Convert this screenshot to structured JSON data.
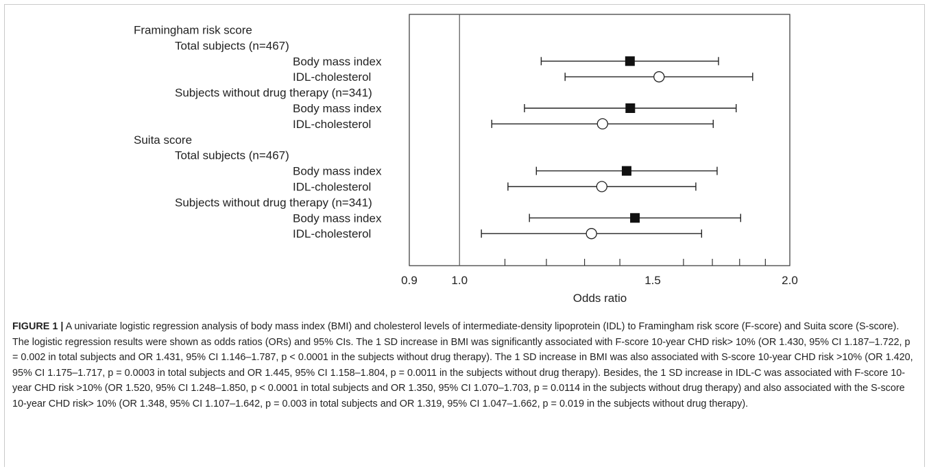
{
  "chart_data": {
    "type": "forest",
    "xlabel": "Odds ratio",
    "xlim": [
      0.9,
      2.0
    ],
    "x_scale": "log",
    "ticks_major": [
      {
        "value": 0.9,
        "label": "0.9"
      },
      {
        "value": 1.0,
        "label": "1.0"
      },
      {
        "value": 1.5,
        "label": "1.5"
      },
      {
        "value": 2.0,
        "label": "2.0"
      }
    ],
    "ticks_minor": [
      1.1,
      1.2,
      1.3,
      1.4,
      1.6,
      1.7,
      1.8,
      1.9
    ],
    "reference_line": 1.0,
    "rows": [
      {
        "label": "Framingham risk score",
        "level": 0
      },
      {
        "label": "Total subjects (n=467)",
        "level": 1
      },
      {
        "label": "Body mass index",
        "level": 2,
        "or": 1.43,
        "lo": 1.187,
        "hi": 1.722,
        "marker": "filled-square"
      },
      {
        "label": "IDL-cholesterol",
        "level": 2,
        "or": 1.52,
        "lo": 1.248,
        "hi": 1.85,
        "marker": "open-circle"
      },
      {
        "label": "Subjects without drug therapy (n=341)",
        "level": 1
      },
      {
        "label": "Body mass index",
        "level": 2,
        "or": 1.431,
        "lo": 1.146,
        "hi": 1.787,
        "marker": "filled-square"
      },
      {
        "label": "IDL-cholesterol",
        "level": 2,
        "or": 1.35,
        "lo": 1.07,
        "hi": 1.703,
        "marker": "open-circle"
      },
      {
        "label": "Suita score",
        "level": 0
      },
      {
        "label": "Total subjects (n=467)",
        "level": 1
      },
      {
        "label": "Body mass index",
        "level": 2,
        "or": 1.42,
        "lo": 1.175,
        "hi": 1.717,
        "marker": "filled-square"
      },
      {
        "label": "IDL-cholesterol",
        "level": 2,
        "or": 1.348,
        "lo": 1.107,
        "hi": 1.642,
        "marker": "open-circle"
      },
      {
        "label": "Subjects without drug therapy (n=341)",
        "level": 1
      },
      {
        "label": "Body mass index",
        "level": 2,
        "or": 1.445,
        "lo": 1.158,
        "hi": 1.804,
        "marker": "filled-square"
      },
      {
        "label": "IDL-cholesterol",
        "level": 2,
        "or": 1.319,
        "lo": 1.047,
        "hi": 1.662,
        "marker": "open-circle"
      }
    ]
  },
  "caption": {
    "figure_label": "FIGURE 1 |",
    "text": "A univariate logistic regression analysis of body mass index (BMI) and cholesterol levels of intermediate-density lipoprotein (IDL) to Framingham risk score (F-score) and Suita score (S-score). The logistic regression results were shown as odds ratios (ORs) and 95% CIs. The 1 SD increase in BMI was significantly associated with F-score 10-year CHD risk> 10% (OR 1.430, 95% CI 1.187–1.722, p = 0.002 in total subjects and OR 1.431, 95% CI 1.146–1.787, p < 0.0001 in the subjects without drug therapy). The 1 SD increase in BMI was also associated with S-score 10-year CHD risk >10% (OR 1.420, 95% CI 1.175–1.717, p = 0.0003 in total subjects and OR 1.445, 95% CI 1.158–1.804, p = 0.0011 in the subjects without drug therapy). Besides, the 1 SD increase in IDL-C was associated with F-score 10-year CHD risk >10% (OR 1.520, 95% CI 1.248–1.850, p < 0.0001 in total subjects and OR 1.350, 95% CI 1.070–1.703, p = 0.0114 in the subjects without drug therapy) and also associated with the S-score 10-year CHD risk> 10% (OR 1.348, 95% CI 1.107–1.642, p = 0.003 in total subjects and OR 1.319, 95% CI 1.047–1.662, p = 0.019 in the subjects without drug therapy)."
  }
}
